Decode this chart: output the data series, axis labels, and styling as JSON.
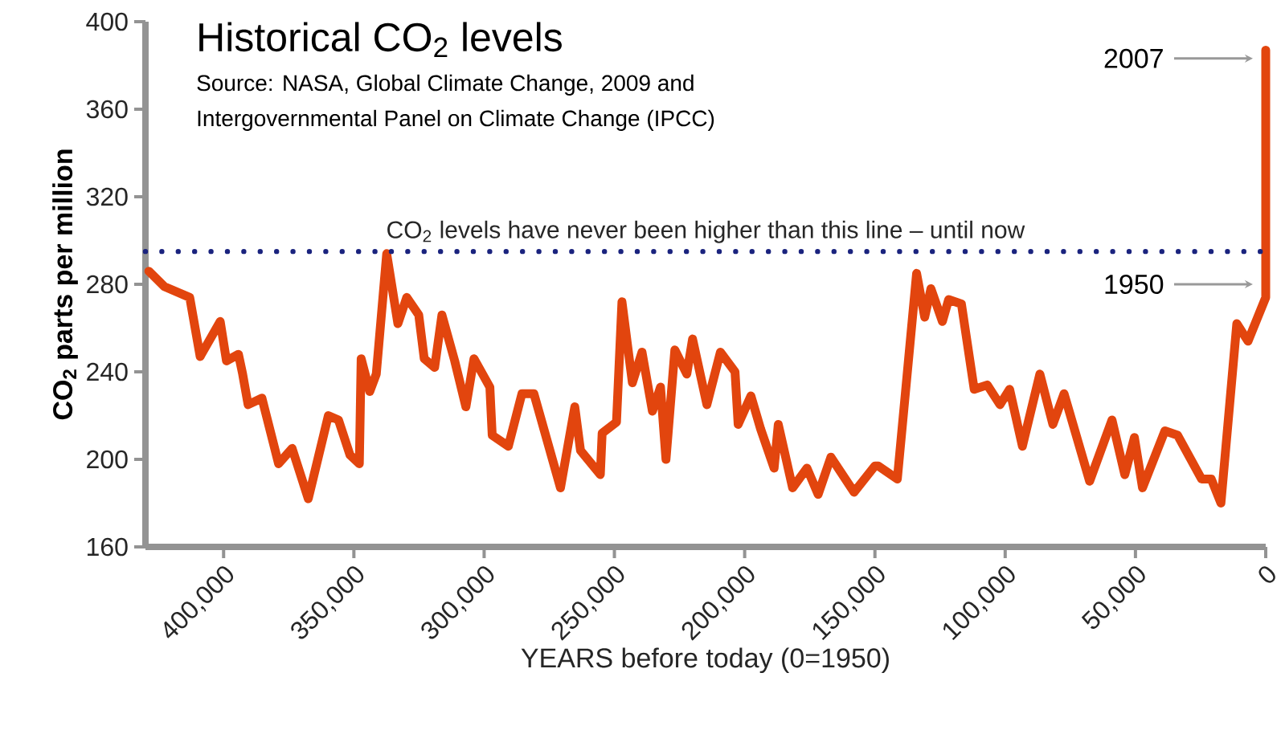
{
  "chart_data": {
    "type": "line",
    "title": "Historical CO$_{2}$ levels",
    "xlabel": "YEARS before today (0=1950)",
    "ylabel": "CO$_{2}$ parts per million",
    "annotations": [
      "Source: NASA, Global Climate Change, 2009 and Intergovernmental Panel on Climate Change (IPCC)",
      "2007",
      "1950"
    ],
    "xlim": [
      430000,
      0
    ],
    "ylim": [
      160,
      400
    ],
    "xticks": [
      {
        "value": 400000,
        "label": "400,000"
      },
      {
        "value": 350000,
        "label": "350,000"
      },
      {
        "value": 300000,
        "label": "300,000"
      },
      {
        "value": 250000,
        "label": "250,000"
      },
      {
        "value": 200000,
        "label": "200,000"
      },
      {
        "value": 150000,
        "label": "150,000"
      },
      {
        "value": 100000,
        "label": "100,000"
      },
      {
        "value": 50000,
        "label": "50,000"
      },
      0
    ],
    "yticks": [
      160,
      200,
      240,
      280,
      320,
      360,
      400
    ],
    "ref_lines": [
      {
        "axis": "y",
        "value": 295,
        "label": "CO$_{2}$ levels have never been higher than this line – until now",
        "color": "#1a237e",
        "line_style": "dotted"
      }
    ],
    "series": [
      {
        "color": "#e2450e",
        "x": [
          428700,
          422800,
          413000,
          409000,
          401300,
          398900,
          394300,
          392700,
          390600,
          385300,
          378900,
          373700,
          367500,
          359800,
          355900,
          351500,
          347900,
          347200,
          343900,
          341400,
          337400,
          333100,
          329700,
          325100,
          323000,
          319000,
          316200,
          311300,
          307000,
          303900,
          297800,
          296900,
          290700,
          285500,
          280900,
          270700,
          265200,
          263000,
          255400,
          254700,
          249200,
          247100,
          243100,
          239400,
          235400,
          232300,
          230200,
          226800,
          222200,
          220000,
          214500,
          209300,
          203700,
          202500,
          197600,
          193900,
          188700,
          187100,
          181600,
          176100,
          171800,
          166900,
          158000,
          150000,
          148700,
          141400,
          134000,
          130900,
          128500,
          124100,
          121700,
          116800,
          111900,
          106900,
          102000,
          98300,
          93400,
          86700,
          81700,
          77400,
          67600,
          59000,
          54100,
          50400,
          47300,
          38700,
          33800,
          24600,
          20900,
          17200,
          11100,
          6800,
          0,
          0
        ],
        "values": [
          286,
          279,
          274,
          247,
          263,
          245,
          248,
          239,
          225,
          228,
          198,
          205,
          182,
          220,
          218,
          202,
          198,
          246,
          231,
          239,
          294,
          262,
          274,
          266,
          246,
          242,
          266,
          245,
          224,
          246,
          233,
          211,
          206,
          230,
          230,
          187,
          224,
          204,
          193,
          212,
          217,
          272,
          235,
          249,
          222,
          233,
          200,
          250,
          239,
          255,
          225,
          249,
          240,
          216,
          229,
          214,
          196,
          216,
          187,
          196,
          184,
          201,
          185,
          197,
          197,
          191,
          285,
          265,
          278,
          263,
          273,
          271,
          232,
          234,
          225,
          232,
          206,
          239,
          216,
          230,
          190,
          218,
          193,
          210,
          187,
          213,
          211,
          191,
          191,
          180,
          262,
          254,
          274,
          387
        ]
      }
    ]
  }
}
